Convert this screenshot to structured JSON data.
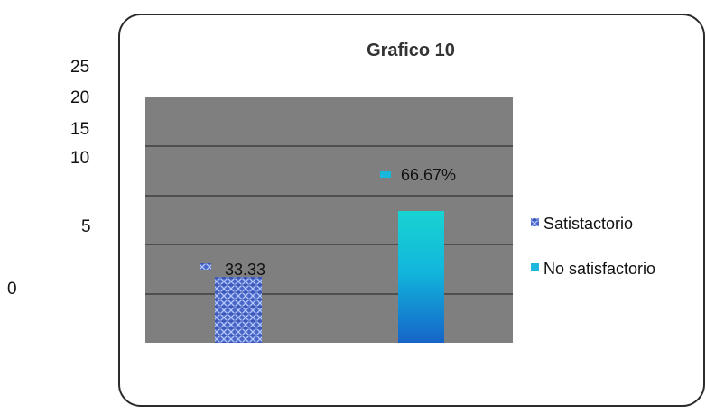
{
  "chart_data": {
    "type": "bar",
    "title": "Grafico 10",
    "xlabel": "",
    "ylabel": "",
    "categories": [
      "Satistactorio",
      "No satisfactorio"
    ],
    "series": [
      {
        "name": "Satistactorio",
        "values": [
          33.33,
          null
        ],
        "data_label": "33.33",
        "color": "#4a67c8"
      },
      {
        "name": "No satisfactorio",
        "values": [
          null,
          66.67
        ],
        "data_label": "66.67%",
        "color": "#16c7d1"
      }
    ],
    "y_tick_labels": [
      "25",
      "20",
      "15",
      "10",
      "5",
      "0"
    ],
    "ylim": [
      0,
      100
    ],
    "grid": true,
    "legend_position": "right",
    "colors": {
      "plot_background": "#7f7f7f",
      "frame": "#2b2b2b",
      "gridline": "#1f1f1f"
    }
  }
}
